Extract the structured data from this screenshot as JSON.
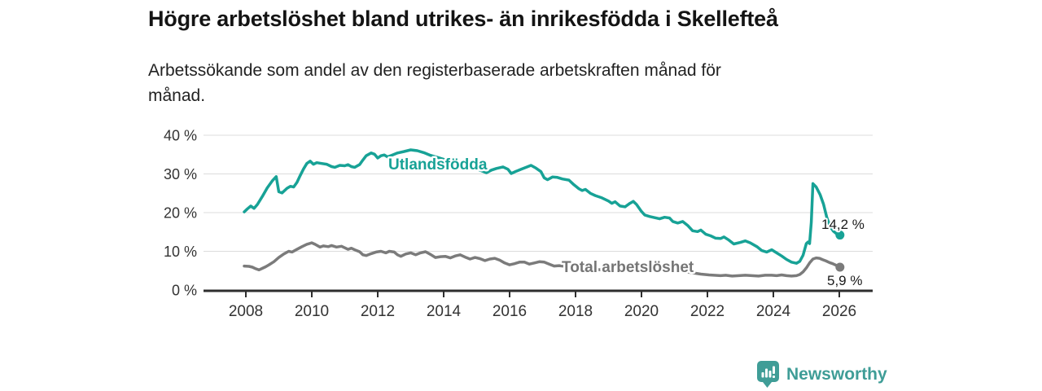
{
  "header": {
    "title": "Högre arbetslöshet bland utrikes- än inrikesfödda i Skellefteå",
    "subtitle_line1": "Arbetssökande som andel av den registerbaserade arbetskraften månad för",
    "subtitle_line2": "månad."
  },
  "chart_data": {
    "type": "line",
    "title": "Högre arbetslöshet bland utrikes- än inrikesfödda i Skellefteå",
    "subtitle": "Arbetssökande som andel av den registerbaserade arbetskraften månad för månad.",
    "x_axis": {
      "ticks": [
        2008,
        2010,
        2012,
        2014,
        2016,
        2018,
        2020,
        2022,
        2024,
        2026
      ],
      "range": [
        2007.7,
        2027.0
      ]
    },
    "y_axis": {
      "unit": "%",
      "range": [
        0,
        42
      ],
      "ticks": [
        {
          "value": 0,
          "label": "0 %"
        },
        {
          "value": 10,
          "label": "10 %"
        },
        {
          "value": 20,
          "label": "20 %"
        },
        {
          "value": 30,
          "label": "30 %"
        },
        {
          "value": 40,
          "label": "40 %"
        }
      ]
    },
    "grid": true,
    "legend_position": "inline-labels",
    "series": [
      {
        "name": "Utlandsfödda",
        "color": "#17a296",
        "end_label": "14,2 %",
        "end_value": 14.2,
        "points": [
          [
            2007.95,
            20.2
          ],
          [
            2008.05,
            21.0
          ],
          [
            2008.15,
            21.7
          ],
          [
            2008.25,
            21.1
          ],
          [
            2008.35,
            22.1
          ],
          [
            2008.5,
            24.2
          ],
          [
            2008.65,
            26.4
          ],
          [
            2008.8,
            28.2
          ],
          [
            2008.92,
            29.3
          ],
          [
            2009.0,
            25.4
          ],
          [
            2009.1,
            25.1
          ],
          [
            2009.25,
            26.3
          ],
          [
            2009.35,
            26.8
          ],
          [
            2009.45,
            26.6
          ],
          [
            2009.55,
            27.8
          ],
          [
            2009.65,
            29.6
          ],
          [
            2009.75,
            31.3
          ],
          [
            2009.85,
            32.7
          ],
          [
            2009.95,
            33.3
          ],
          [
            2010.05,
            32.5
          ],
          [
            2010.15,
            32.9
          ],
          [
            2010.3,
            32.7
          ],
          [
            2010.45,
            32.5
          ],
          [
            2010.6,
            31.9
          ],
          [
            2010.7,
            31.7
          ],
          [
            2010.85,
            32.2
          ],
          [
            2011.0,
            32.1
          ],
          [
            2011.1,
            32.4
          ],
          [
            2011.2,
            31.9
          ],
          [
            2011.3,
            31.7
          ],
          [
            2011.45,
            32.4
          ],
          [
            2011.55,
            33.6
          ],
          [
            2011.65,
            34.7
          ],
          [
            2011.8,
            35.4
          ],
          [
            2011.9,
            35.1
          ],
          [
            2012.0,
            34.1
          ],
          [
            2012.1,
            34.7
          ],
          [
            2012.2,
            34.9
          ],
          [
            2012.3,
            34.4
          ],
          [
            2012.45,
            34.9
          ],
          [
            2012.6,
            35.4
          ],
          [
            2012.8,
            35.8
          ],
          [
            2013.0,
            36.2
          ],
          [
            2013.2,
            36.0
          ],
          [
            2013.4,
            35.5
          ],
          [
            2013.6,
            34.8
          ],
          [
            2013.8,
            34.3
          ],
          [
            2014.0,
            33.8
          ],
          [
            2014.25,
            33.2
          ],
          [
            2014.5,
            32.7
          ],
          [
            2014.75,
            31.9
          ],
          [
            2015.0,
            31.3
          ],
          [
            2015.15,
            30.8
          ],
          [
            2015.3,
            30.3
          ],
          [
            2015.45,
            31.0
          ],
          [
            2015.6,
            31.4
          ],
          [
            2015.8,
            31.8
          ],
          [
            2015.95,
            31.2
          ],
          [
            2016.05,
            30.1
          ],
          [
            2016.2,
            30.7
          ],
          [
            2016.35,
            31.2
          ],
          [
            2016.5,
            31.7
          ],
          [
            2016.65,
            32.2
          ],
          [
            2016.8,
            31.5
          ],
          [
            2016.95,
            30.6
          ],
          [
            2017.05,
            29.0
          ],
          [
            2017.15,
            28.5
          ],
          [
            2017.3,
            29.2
          ],
          [
            2017.45,
            29.1
          ],
          [
            2017.6,
            28.7
          ],
          [
            2017.8,
            28.4
          ],
          [
            2017.95,
            27.2
          ],
          [
            2018.1,
            26.2
          ],
          [
            2018.2,
            25.7
          ],
          [
            2018.3,
            26.0
          ],
          [
            2018.45,
            25.0
          ],
          [
            2018.6,
            24.4
          ],
          [
            2018.8,
            23.8
          ],
          [
            2019.0,
            23.0
          ],
          [
            2019.1,
            22.4
          ],
          [
            2019.2,
            22.8
          ],
          [
            2019.35,
            21.7
          ],
          [
            2019.5,
            21.5
          ],
          [
            2019.65,
            22.4
          ],
          [
            2019.75,
            22.9
          ],
          [
            2019.85,
            22.1
          ],
          [
            2020.0,
            20.3
          ],
          [
            2020.1,
            19.4
          ],
          [
            2020.25,
            19.0
          ],
          [
            2020.4,
            18.7
          ],
          [
            2020.55,
            18.4
          ],
          [
            2020.7,
            18.8
          ],
          [
            2020.85,
            18.6
          ],
          [
            2020.95,
            17.7
          ],
          [
            2021.1,
            17.3
          ],
          [
            2021.25,
            17.7
          ],
          [
            2021.4,
            16.7
          ],
          [
            2021.55,
            15.3
          ],
          [
            2021.7,
            15.1
          ],
          [
            2021.8,
            15.5
          ],
          [
            2021.95,
            14.4
          ],
          [
            2022.1,
            14.0
          ],
          [
            2022.25,
            13.4
          ],
          [
            2022.4,
            13.3
          ],
          [
            2022.5,
            13.7
          ],
          [
            2022.65,
            12.9
          ],
          [
            2022.8,
            11.9
          ],
          [
            2023.0,
            12.3
          ],
          [
            2023.15,
            12.7
          ],
          [
            2023.3,
            12.2
          ],
          [
            2023.5,
            11.2
          ],
          [
            2023.65,
            10.2
          ],
          [
            2023.8,
            9.8
          ],
          [
            2023.95,
            10.4
          ],
          [
            2024.1,
            9.6
          ],
          [
            2024.25,
            8.8
          ],
          [
            2024.4,
            7.9
          ],
          [
            2024.55,
            7.2
          ],
          [
            2024.7,
            6.9
          ],
          [
            2024.8,
            7.4
          ],
          [
            2024.9,
            9.0
          ],
          [
            2025.0,
            12.0
          ],
          [
            2025.05,
            12.4
          ],
          [
            2025.1,
            12.0
          ],
          [
            2025.15,
            17.5
          ],
          [
            2025.2,
            27.5
          ],
          [
            2025.3,
            26.6
          ],
          [
            2025.42,
            24.6
          ],
          [
            2025.52,
            22.2
          ],
          [
            2025.62,
            18.8
          ],
          [
            2025.72,
            16.4
          ],
          [
            2025.82,
            15.2
          ],
          [
            2025.92,
            14.5
          ],
          [
            2026.02,
            14.2
          ]
        ]
      },
      {
        "name": "Total arbetslöshet",
        "color": "#7b7b7b",
        "end_label": "5,9 %",
        "end_value": 5.9,
        "points": [
          [
            2007.95,
            6.2
          ],
          [
            2008.1,
            6.1
          ],
          [
            2008.2,
            5.9
          ],
          [
            2008.3,
            5.5
          ],
          [
            2008.4,
            5.2
          ],
          [
            2008.5,
            5.6
          ],
          [
            2008.6,
            6.0
          ],
          [
            2008.7,
            6.5
          ],
          [
            2008.85,
            7.3
          ],
          [
            2009.0,
            8.4
          ],
          [
            2009.15,
            9.3
          ],
          [
            2009.3,
            10.0
          ],
          [
            2009.4,
            9.8
          ],
          [
            2009.55,
            10.5
          ],
          [
            2009.7,
            11.2
          ],
          [
            2009.85,
            11.8
          ],
          [
            2010.0,
            12.2
          ],
          [
            2010.1,
            11.8
          ],
          [
            2010.25,
            11.1
          ],
          [
            2010.35,
            11.4
          ],
          [
            2010.5,
            11.2
          ],
          [
            2010.6,
            11.5
          ],
          [
            2010.75,
            11.1
          ],
          [
            2010.9,
            11.3
          ],
          [
            2011.0,
            10.9
          ],
          [
            2011.1,
            10.5
          ],
          [
            2011.2,
            10.8
          ],
          [
            2011.3,
            10.4
          ],
          [
            2011.45,
            9.9
          ],
          [
            2011.55,
            9.1
          ],
          [
            2011.65,
            8.9
          ],
          [
            2011.8,
            9.4
          ],
          [
            2011.95,
            9.8
          ],
          [
            2012.1,
            10.0
          ],
          [
            2012.25,
            9.6
          ],
          [
            2012.35,
            10.0
          ],
          [
            2012.5,
            9.8
          ],
          [
            2012.6,
            9.1
          ],
          [
            2012.7,
            8.7
          ],
          [
            2012.85,
            9.3
          ],
          [
            2013.0,
            9.6
          ],
          [
            2013.15,
            9.1
          ],
          [
            2013.3,
            9.6
          ],
          [
            2013.45,
            9.9
          ],
          [
            2013.6,
            9.2
          ],
          [
            2013.75,
            8.4
          ],
          [
            2013.9,
            8.6
          ],
          [
            2014.05,
            8.7
          ],
          [
            2014.2,
            8.3
          ],
          [
            2014.35,
            8.8
          ],
          [
            2014.5,
            9.1
          ],
          [
            2014.65,
            8.5
          ],
          [
            2014.8,
            8.0
          ],
          [
            2014.95,
            8.4
          ],
          [
            2015.1,
            8.1
          ],
          [
            2015.25,
            7.6
          ],
          [
            2015.4,
            8.0
          ],
          [
            2015.55,
            8.2
          ],
          [
            2015.7,
            7.7
          ],
          [
            2015.85,
            7.0
          ],
          [
            2016.0,
            6.5
          ],
          [
            2016.15,
            6.8
          ],
          [
            2016.3,
            7.2
          ],
          [
            2016.45,
            7.2
          ],
          [
            2016.6,
            6.7
          ],
          [
            2016.75,
            7.0
          ],
          [
            2016.9,
            7.3
          ],
          [
            2017.05,
            7.2
          ],
          [
            2017.2,
            6.7
          ],
          [
            2017.35,
            6.2
          ],
          [
            2017.5,
            6.3
          ],
          [
            2017.7,
            6.1
          ],
          [
            2018.0,
            5.8
          ],
          [
            2018.3,
            5.5
          ],
          [
            2018.6,
            5.3
          ],
          [
            2019.0,
            5.1
          ],
          [
            2019.4,
            4.9
          ],
          [
            2019.8,
            4.9
          ],
          [
            2020.1,
            5.3
          ],
          [
            2020.35,
            5.7
          ],
          [
            2020.6,
            5.7
          ],
          [
            2020.9,
            5.3
          ],
          [
            2021.2,
            4.9
          ],
          [
            2021.5,
            4.5
          ],
          [
            2021.8,
            4.1
          ],
          [
            2022.05,
            3.9
          ],
          [
            2022.2,
            3.8
          ],
          [
            2022.4,
            3.7
          ],
          [
            2022.55,
            3.8
          ],
          [
            2022.75,
            3.6
          ],
          [
            2022.95,
            3.7
          ],
          [
            2023.15,
            3.8
          ],
          [
            2023.35,
            3.7
          ],
          [
            2023.55,
            3.6
          ],
          [
            2023.75,
            3.8
          ],
          [
            2023.95,
            3.8
          ],
          [
            2024.1,
            3.7
          ],
          [
            2024.25,
            3.9
          ],
          [
            2024.4,
            3.7
          ],
          [
            2024.55,
            3.6
          ],
          [
            2024.7,
            3.7
          ],
          [
            2024.8,
            4.0
          ],
          [
            2024.9,
            4.7
          ],
          [
            2025.0,
            5.7
          ],
          [
            2025.1,
            7.0
          ],
          [
            2025.2,
            8.0
          ],
          [
            2025.3,
            8.3
          ],
          [
            2025.4,
            8.2
          ],
          [
            2025.5,
            7.8
          ],
          [
            2025.6,
            7.5
          ],
          [
            2025.7,
            7.1
          ],
          [
            2025.8,
            6.8
          ],
          [
            2025.9,
            6.4
          ],
          [
            2026.02,
            5.9
          ]
        ]
      }
    ]
  },
  "branding": {
    "name": "Newsworthy",
    "color": "#3f9d97"
  }
}
